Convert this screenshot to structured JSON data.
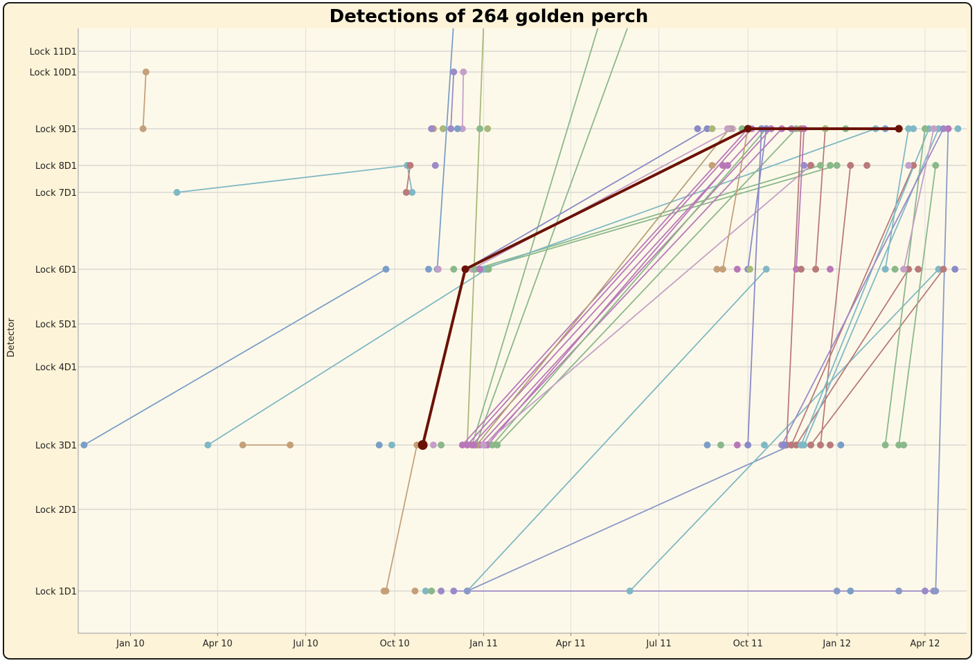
{
  "chart_data": {
    "type": "line",
    "title": "Detections of 264 golden perch",
    "ylabel": "Detector",
    "xlabel": "",
    "x_ticks": [
      "Jan 10",
      "Apr 10",
      "Jul 10",
      "Oct 10",
      "Jan 11",
      "Apr 11",
      "Jul 11",
      "Oct 11",
      "Jan 12",
      "Apr 12"
    ],
    "x_tick_dates": [
      "2010-01-01",
      "2010-04-01",
      "2010-07-01",
      "2010-10-01",
      "2011-01-01",
      "2011-04-01",
      "2011-07-01",
      "2011-10-01",
      "2012-01-01",
      "2012-04-01"
    ],
    "xlim": [
      "2009-11-08",
      "2012-05-14"
    ],
    "y_ticks": [
      {
        "label": "Lock 11",
        "code": "D1",
        "value": 11
      },
      {
        "label": "Lock 10",
        "code": "D1",
        "value": 10
      },
      {
        "label": "Lock 9",
        "code": "D1",
        "value": 9
      },
      {
        "label": "Lock 8",
        "code": "D1",
        "value": 8
      },
      {
        "label": "Lock 7",
        "code": "D1",
        "value": 7
      },
      {
        "label": "Lock 6",
        "code": "D1",
        "value": 6
      },
      {
        "label": "Lock 5",
        "code": "D1",
        "value": 5
      },
      {
        "label": "Lock 4",
        "code": "D1",
        "value": 4
      },
      {
        "label": "Lock 3",
        "code": "D1",
        "value": 3
      },
      {
        "label": "Lock 2",
        "code": "D1",
        "value": 2
      },
      {
        "label": "Lock 1",
        "code": "D1",
        "value": 1
      }
    ],
    "grid": true,
    "legend": "none",
    "colors": {
      "background": "#fdf3d8",
      "plot_background": "#fdf9ea",
      "grid": "#c8c8c8",
      "highlight": "#6b1207"
    },
    "highlight_series": {
      "color": "#6b1207",
      "points": [
        {
          "x": "2010-10-30",
          "y": 3
        },
        {
          "x": "2010-12-13",
          "y": 6
        },
        {
          "x": "2011-10-01",
          "y": 9
        },
        {
          "x": "2012-03-05",
          "y": 9
        }
      ]
    },
    "series": [
      {
        "color": "#7a9ec8",
        "points": [
          {
            "x": "2009-11-14",
            "y": 3
          },
          {
            "x": "2010-09-22",
            "y": 6
          }
        ]
      },
      {
        "color": "#7fb8c4",
        "points": [
          {
            "x": "2010-02-18",
            "y": 7
          },
          {
            "x": "2010-10-14",
            "y": 8
          }
        ]
      },
      {
        "color": "#7fb8c4",
        "points": [
          {
            "x": "2010-10-19",
            "y": 7
          },
          {
            "x": "2010-10-14",
            "y": 8
          }
        ]
      },
      {
        "color": "#c4a07a",
        "points": [
          {
            "x": "2010-01-14",
            "y": 9
          },
          {
            "x": "2010-01-17",
            "y": 10
          }
        ]
      },
      {
        "color": "#b87a7a",
        "points": [
          {
            "x": "2010-10-13",
            "y": 7
          },
          {
            "x": "2010-10-17",
            "y": 8
          }
        ]
      },
      {
        "color": "#7fb8c4",
        "points": [
          {
            "x": "2010-03-22",
            "y": 3
          },
          {
            "x": "2011-01-04",
            "y": 6
          }
        ]
      },
      {
        "color": "#c4a07a",
        "points": [
          {
            "x": "2010-04-27",
            "y": 3
          },
          {
            "x": "2010-06-15",
            "y": 3
          }
        ]
      },
      {
        "color": "#c4a07a",
        "points": [
          {
            "x": "2010-09-22",
            "y": 1
          },
          {
            "x": "2010-10-24",
            "y": 3
          }
        ]
      },
      {
        "color": "#9b8ac8",
        "points": [
          {
            "x": "2010-11-28",
            "y": 9
          },
          {
            "x": "2010-12-01",
            "y": 10
          }
        ]
      },
      {
        "color": "#c4a0c8",
        "points": [
          {
            "x": "2010-12-10",
            "y": 9
          },
          {
            "x": "2010-12-11",
            "y": 10
          }
        ]
      },
      {
        "color": "#a8b87a",
        "points": [
          {
            "x": "2010-12-15",
            "y": 3
          },
          {
            "x": "2011-01-01",
            "y": 11.5
          }
        ]
      },
      {
        "color": "#8ab88a",
        "points": [
          {
            "x": "2010-12-20",
            "y": 3
          },
          {
            "x": "2011-05-01",
            "y": 11.5
          }
        ]
      },
      {
        "color": "#8ab88a",
        "points": [
          {
            "x": "2010-12-24",
            "y": 3
          },
          {
            "x": "2011-06-01",
            "y": 11.5
          }
        ]
      },
      {
        "color": "#8a8ac8",
        "points": [
          {
            "x": "2010-12-13",
            "y": 6
          },
          {
            "x": "2011-08-20",
            "y": 9
          }
        ]
      },
      {
        "color": "#c4a0c8",
        "points": [
          {
            "x": "2010-12-20",
            "y": 6
          },
          {
            "x": "2011-09-15",
            "y": 9
          }
        ]
      },
      {
        "color": "#8ab88a",
        "points": [
          {
            "x": "2010-12-23",
            "y": 6
          },
          {
            "x": "2011-12-15",
            "y": 8
          }
        ]
      },
      {
        "color": "#8ab88a",
        "points": [
          {
            "x": "2010-12-28",
            "y": 6
          },
          {
            "x": "2012-01-01",
            "y": 8
          }
        ]
      },
      {
        "color": "#7fb8c4",
        "points": [
          {
            "x": "2011-01-01",
            "y": 6
          },
          {
            "x": "2012-02-10",
            "y": 9
          }
        ]
      },
      {
        "color": "#b878b8",
        "points": [
          {
            "x": "2010-12-10",
            "y": 3
          },
          {
            "x": "2011-10-01",
            "y": 9
          }
        ]
      },
      {
        "color": "#b878b8",
        "points": [
          {
            "x": "2010-12-15",
            "y": 3
          },
          {
            "x": "2011-10-05",
            "y": 9
          }
        ]
      },
      {
        "color": "#b878b8",
        "points": [
          {
            "x": "2010-12-20",
            "y": 3
          },
          {
            "x": "2011-10-15",
            "y": 9
          }
        ]
      },
      {
        "color": "#b878b8",
        "points": [
          {
            "x": "2010-12-28",
            "y": 3
          },
          {
            "x": "2011-10-25",
            "y": 9
          }
        ]
      },
      {
        "color": "#b878b8",
        "points": [
          {
            "x": "2011-01-02",
            "y": 3
          },
          {
            "x": "2011-11-05",
            "y": 9
          }
        ]
      },
      {
        "color": "#b878b8",
        "points": [
          {
            "x": "2011-01-05",
            "y": 3
          },
          {
            "x": "2011-09-10",
            "y": 8
          }
        ]
      },
      {
        "color": "#b4a07a",
        "points": [
          {
            "x": "2010-12-25",
            "y": 3
          },
          {
            "x": "2011-09-12",
            "y": 9
          }
        ]
      },
      {
        "color": "#8ab88a",
        "points": [
          {
            "x": "2011-01-10",
            "y": 3
          },
          {
            "x": "2011-10-20",
            "y": 9
          }
        ]
      },
      {
        "color": "#8ab88a",
        "points": [
          {
            "x": "2011-01-15",
            "y": 3
          },
          {
            "x": "2011-11-20",
            "y": 9
          }
        ]
      },
      {
        "color": "#c4a0c8",
        "points": [
          {
            "x": "2011-01-01",
            "y": 3
          },
          {
            "x": "2011-12-05",
            "y": 8
          }
        ]
      },
      {
        "color": "#7fb8c4",
        "points": [
          {
            "x": "2010-12-15",
            "y": 1
          },
          {
            "x": "2011-10-20",
            "y": 6
          }
        ]
      },
      {
        "color": "#8a9ac8",
        "points": [
          {
            "x": "2010-12-15",
            "y": 1
          },
          {
            "x": "2011-11-15",
            "y": 3
          }
        ]
      },
      {
        "color": "#7fb8c4",
        "points": [
          {
            "x": "2011-06-01",
            "y": 1
          },
          {
            "x": "2012-04-15",
            "y": 6
          }
        ]
      },
      {
        "color": "#9b8ac8",
        "points": [
          {
            "x": "2010-12-01",
            "y": 1
          },
          {
            "x": "2012-04-10",
            "y": 1
          }
        ]
      },
      {
        "color": "#8a9ac8",
        "points": [
          {
            "x": "2012-04-12",
            "y": 1
          },
          {
            "x": "2012-04-25",
            "y": 9
          }
        ]
      },
      {
        "color": "#7a9ec8",
        "points": [
          {
            "x": "2010-11-14",
            "y": 6
          },
          {
            "x": "2010-12-01",
            "y": 11.5
          }
        ]
      },
      {
        "color": "#8a8ac8",
        "points": [
          {
            "x": "2011-10-01",
            "y": 3
          },
          {
            "x": "2011-10-15",
            "y": 9
          }
        ]
      },
      {
        "color": "#b87a7a",
        "points": [
          {
            "x": "2011-11-10",
            "y": 3
          },
          {
            "x": "2011-11-25",
            "y": 9
          }
        ]
      },
      {
        "color": "#b87a7a",
        "points": [
          {
            "x": "2011-12-15",
            "y": 3
          },
          {
            "x": "2012-01-15",
            "y": 8
          }
        ]
      },
      {
        "color": "#b87a7a",
        "points": [
          {
            "x": "2011-11-15",
            "y": 3
          },
          {
            "x": "2012-03-20",
            "y": 8
          }
        ]
      },
      {
        "color": "#b87a7a",
        "points": [
          {
            "x": "2011-11-20",
            "y": 3
          },
          {
            "x": "2012-03-15",
            "y": 6
          }
        ]
      },
      {
        "color": "#b87a7a",
        "points": [
          {
            "x": "2011-12-05",
            "y": 3
          },
          {
            "x": "2012-04-20",
            "y": 6
          }
        ]
      },
      {
        "color": "#7fb8c4",
        "points": [
          {
            "x": "2011-11-25",
            "y": 3
          },
          {
            "x": "2012-04-05",
            "y": 9
          }
        ]
      },
      {
        "color": "#7fb8c4",
        "points": [
          {
            "x": "2011-11-28",
            "y": 3
          },
          {
            "x": "2012-04-15",
            "y": 9
          }
        ]
      },
      {
        "color": "#8ab88a",
        "points": [
          {
            "x": "2012-02-20",
            "y": 3
          },
          {
            "x": "2012-04-01",
            "y": 9
          }
        ]
      },
      {
        "color": "#8ab88a",
        "points": [
          {
            "x": "2012-03-05",
            "y": 3
          },
          {
            "x": "2012-04-12",
            "y": 8
          }
        ]
      },
      {
        "color": "#9b8ac8",
        "points": [
          {
            "x": "2011-11-05",
            "y": 3
          },
          {
            "x": "2012-04-20",
            "y": 9
          }
        ]
      },
      {
        "color": "#c4a07a",
        "points": [
          {
            "x": "2011-09-05",
            "y": 6
          },
          {
            "x": "2011-10-01",
            "y": 9
          }
        ]
      },
      {
        "color": "#8a8ac8",
        "points": [
          {
            "x": "2011-10-01",
            "y": 6
          },
          {
            "x": "2011-10-20",
            "y": 9
          }
        ]
      },
      {
        "color": "#b878b8",
        "points": [
          {
            "x": "2011-11-20",
            "y": 6
          },
          {
            "x": "2011-11-28",
            "y": 9
          }
        ]
      },
      {
        "color": "#b87a7a",
        "points": [
          {
            "x": "2011-12-10",
            "y": 6
          },
          {
            "x": "2011-12-20",
            "y": 9
          }
        ]
      },
      {
        "color": "#7fb8c4",
        "points": [
          {
            "x": "2012-02-20",
            "y": 6
          },
          {
            "x": "2012-03-15",
            "y": 9
          }
        ]
      },
      {
        "color": "#c4a0c8",
        "points": [
          {
            "x": "2012-03-10",
            "y": 6
          },
          {
            "x": "2012-04-10",
            "y": 9
          }
        ]
      }
    ],
    "markers": [
      {
        "color": "#c4a07a",
        "x": "2010-11-10",
        "y": 9
      },
      {
        "color": "#9b8ac8",
        "x": "2010-11-08",
        "y": 9
      },
      {
        "color": "#a8b87a",
        "x": "2010-11-20",
        "y": 9
      },
      {
        "color": "#7a9ec8",
        "x": "2010-12-05",
        "y": 9
      },
      {
        "color": "#8ab88a",
        "x": "2010-12-28",
        "y": 9
      },
      {
        "color": "#a8b87a",
        "x": "2011-01-05",
        "y": 9
      },
      {
        "color": "#9b8ac8",
        "x": "2010-11-12",
        "y": 8
      },
      {
        "color": "#7a9ec8",
        "x": "2010-11-05",
        "y": 6
      },
      {
        "color": "#c4a0c8",
        "x": "2010-11-15",
        "y": 6
      },
      {
        "color": "#8ab88a",
        "x": "2010-12-01",
        "y": 6
      },
      {
        "color": "#b878b8",
        "x": "2010-12-28",
        "y": 6
      },
      {
        "color": "#8ab88a",
        "x": "2011-01-06",
        "y": 6
      },
      {
        "color": "#7a9ec8",
        "x": "2010-09-15",
        "y": 3
      },
      {
        "color": "#7fb8c4",
        "x": "2010-09-28",
        "y": 3
      },
      {
        "color": "#c4a0c8",
        "x": "2010-11-10",
        "y": 3
      },
      {
        "color": "#8ab88a",
        "x": "2010-11-18",
        "y": 3
      },
      {
        "color": "#b878b8",
        "x": "2010-12-22",
        "y": 3
      },
      {
        "color": "#7a9ec8",
        "x": "2011-08-20",
        "y": 3
      },
      {
        "color": "#8ab88a",
        "x": "2011-09-03",
        "y": 3
      },
      {
        "color": "#b878b8",
        "x": "2011-09-20",
        "y": 3
      },
      {
        "color": "#7fb8c4",
        "x": "2011-10-18",
        "y": 3
      },
      {
        "color": "#8a8ac8",
        "x": "2011-11-08",
        "y": 3
      },
      {
        "color": "#b87a7a",
        "x": "2011-12-25",
        "y": 3
      },
      {
        "color": "#7a9ec8",
        "x": "2012-01-05",
        "y": 3
      },
      {
        "color": "#8ab88a",
        "x": "2012-03-10",
        "y": 3
      },
      {
        "color": "#8a8ac8",
        "x": "2011-08-10",
        "y": 9
      },
      {
        "color": "#a8b87a",
        "x": "2011-08-25",
        "y": 9
      },
      {
        "color": "#c4a0c8",
        "x": "2011-09-10",
        "y": 9
      },
      {
        "color": "#8ab88a",
        "x": "2011-09-25",
        "y": 9
      },
      {
        "color": "#b878b8",
        "x": "2011-11-15",
        "y": 9
      },
      {
        "color": "#a8b87a",
        "x": "2011-12-20",
        "y": 9
      },
      {
        "color": "#8ab88a",
        "x": "2012-01-10",
        "y": 9
      },
      {
        "color": "#7a9ec8",
        "x": "2012-02-20",
        "y": 9
      },
      {
        "color": "#7fb8c4",
        "x": "2012-03-20",
        "y": 9
      },
      {
        "color": "#b878b8",
        "x": "2012-04-25",
        "y": 9
      },
      {
        "color": "#7fb8c4",
        "x": "2012-05-05",
        "y": 9
      },
      {
        "color": "#c4a07a",
        "x": "2011-08-25",
        "y": 8
      },
      {
        "color": "#b878b8",
        "x": "2011-09-05",
        "y": 8
      },
      {
        "color": "#9b8ac8",
        "x": "2011-11-28",
        "y": 8
      },
      {
        "color": "#b87a7a",
        "x": "2011-12-05",
        "y": 8
      },
      {
        "color": "#8ab88a",
        "x": "2011-12-25",
        "y": 8
      },
      {
        "color": "#b87a7a",
        "x": "2012-02-01",
        "y": 8
      },
      {
        "color": "#c4a0c8",
        "x": "2012-03-15",
        "y": 8
      },
      {
        "color": "#c4a07a",
        "x": "2011-08-30",
        "y": 6
      },
      {
        "color": "#b878b8",
        "x": "2011-09-20",
        "y": 6
      },
      {
        "color": "#a8b87a",
        "x": "2011-10-03",
        "y": 6
      },
      {
        "color": "#b87a7a",
        "x": "2011-11-25",
        "y": 6
      },
      {
        "color": "#b878b8",
        "x": "2011-12-25",
        "y": 6
      },
      {
        "color": "#8ab88a",
        "x": "2012-03-01",
        "y": 6
      },
      {
        "color": "#b87a7a",
        "x": "2012-03-25",
        "y": 6
      },
      {
        "color": "#8a8ac8",
        "x": "2012-05-02",
        "y": 6
      },
      {
        "color": "#c4a07a",
        "x": "2010-09-20",
        "y": 1
      },
      {
        "color": "#c4a07a",
        "x": "2010-10-22",
        "y": 1
      },
      {
        "color": "#7fb8c4",
        "x": "2010-11-02",
        "y": 1
      },
      {
        "color": "#8ab88a",
        "x": "2010-11-08",
        "y": 1
      },
      {
        "color": "#9b8ac8",
        "x": "2010-11-18",
        "y": 1
      },
      {
        "color": "#8a9ac8",
        "x": "2012-01-01",
        "y": 1
      },
      {
        "color": "#7a9ec8",
        "x": "2012-01-15",
        "y": 1
      },
      {
        "color": "#8a9ac8",
        "x": "2012-03-05",
        "y": 1
      },
      {
        "color": "#9b8ac8",
        "x": "2012-04-01",
        "y": 1
      }
    ]
  }
}
